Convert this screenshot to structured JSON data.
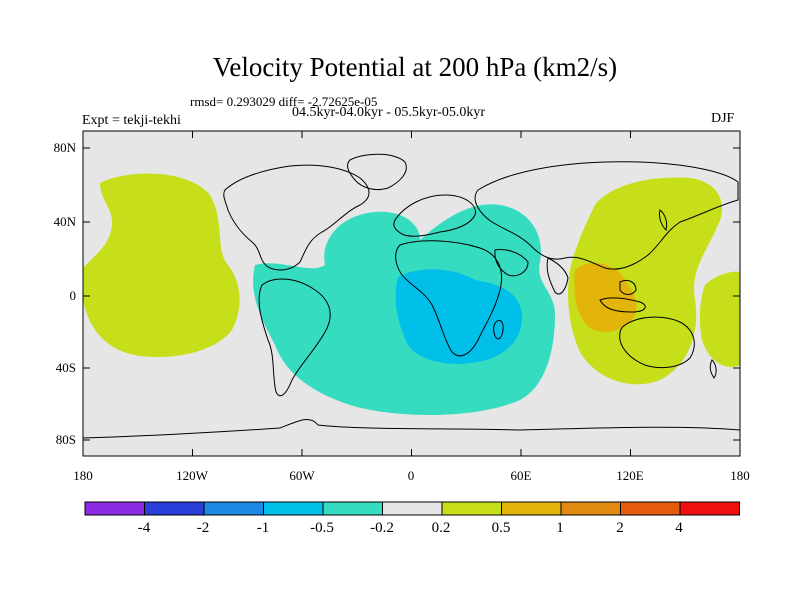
{
  "title": "Velocity Potential at 200 hPa (km2/s)",
  "stats_line": "rmsd= 0.293029 diff= -2.72625e-05",
  "periods_line": "04.5kyr-04.0kyr - 05.5kyr-05.0kyr",
  "expt_label": "Expt = tekji-tekhi",
  "season": "DJF",
  "lat_labels": [
    "80N",
    "40N",
    "0",
    "40S",
    "80S"
  ],
  "lon_labels": [
    "180",
    "120W",
    "60W",
    "0",
    "60E",
    "120E",
    "180"
  ],
  "colorbar": {
    "labels": [
      "-4",
      "-2",
      "-1",
      "-0.5",
      "-0.2",
      "0.2",
      "0.5",
      "1",
      "2",
      "4"
    ],
    "colors": [
      "#8a2be2",
      "#2a3fd8",
      "#1e88e5",
      "#00bfe8",
      "#35dcc0",
      "#e6e6e6",
      "#c6df1a",
      "#e3b50a",
      "#e08a12",
      "#e45a0e",
      "#ee1010"
    ]
  },
  "field_colors": {
    "background": "#e6e6e6",
    "positive_weak": "#c6df1a",
    "positive_mid": "#e3b50a",
    "negative_weak": "#35dcc0",
    "negative_mid": "#00bfe8"
  },
  "icons": {
    "map": "world-map-contour",
    "colorbar": "color-scale"
  }
}
